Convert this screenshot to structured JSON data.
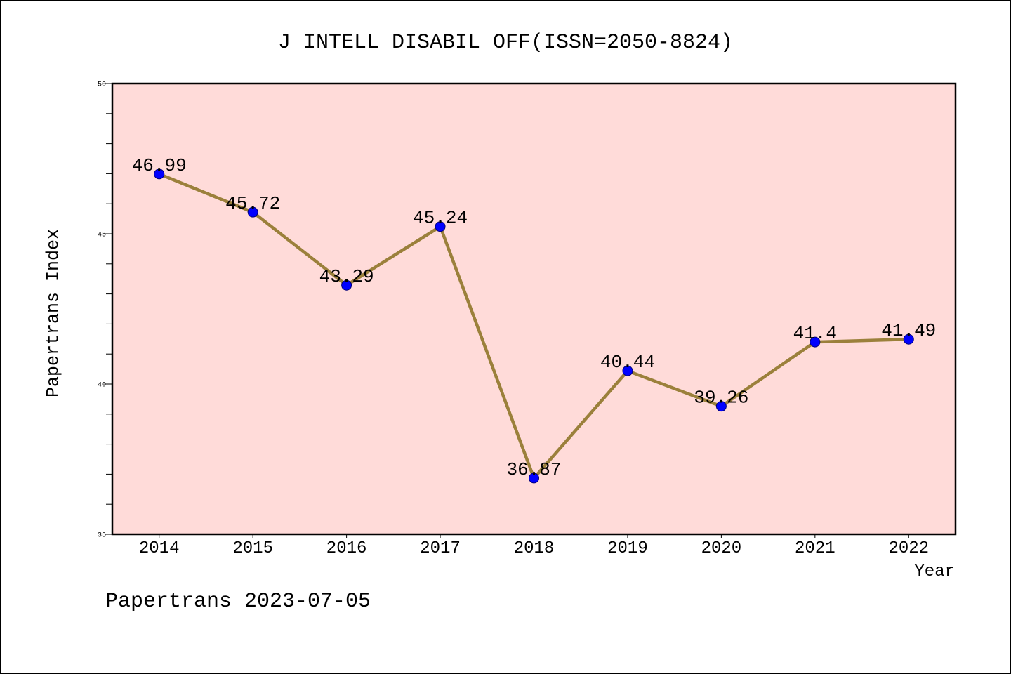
{
  "chart_data": {
    "type": "line",
    "title": "J INTELL DISABIL OFF(ISSN=2050-8824)",
    "xlabel": "Year",
    "ylabel": "Papertrans Index",
    "categories": [
      "2014",
      "2015",
      "2016",
      "2017",
      "2018",
      "2019",
      "2020",
      "2021",
      "2022"
    ],
    "series": [
      {
        "values": [
          46.99,
          45.72,
          43.29,
          45.24,
          36.87,
          40.44,
          39.26,
          41.4,
          41.49
        ],
        "data_labels": true
      }
    ],
    "ylim": [
      35,
      50
    ],
    "yticks": [
      35,
      40,
      45,
      50
    ],
    "y_minor_step": 1,
    "grid": false,
    "colors": {
      "line": "#9B803B",
      "marker": "#0000FF",
      "marker_edge": "#00007A",
      "plot_background": "#FFDBD9",
      "frame": "#000000"
    }
  },
  "footer": "Papertrans 2023-07-05"
}
